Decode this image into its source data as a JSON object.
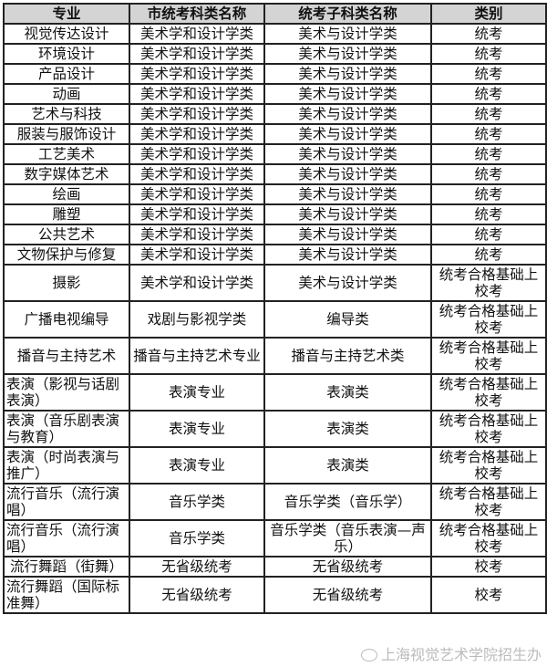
{
  "headers": [
    "专业",
    "市统考科类名称",
    "统考子科类名称",
    "类别"
  ],
  "rows": [
    [
      "视觉传达设计",
      "美术学和设计学类",
      "美术与设计学类",
      "统考"
    ],
    [
      "环境设计",
      "美术学和设计学类",
      "美术与设计学类",
      "统考"
    ],
    [
      "产品设计",
      "美术学和设计学类",
      "美术与设计学类",
      "统考"
    ],
    [
      "动画",
      "美术学和设计学类",
      "美术与设计学类",
      "统考"
    ],
    [
      "艺术与科技",
      "美术学和设计学类",
      "美术与设计学类",
      "统考"
    ],
    [
      "服装与服饰设计",
      "美术学和设计学类",
      "美术与设计学类",
      "统考"
    ],
    [
      "工艺美术",
      "美术学和设计学类",
      "美术与设计学类",
      "统考"
    ],
    [
      "数字媒体艺术",
      "美术学和设计学类",
      "美术与设计学类",
      "统考"
    ],
    [
      "绘画",
      "美术学和设计学类",
      "美术与设计学类",
      "统考"
    ],
    [
      "雕塑",
      "美术学和设计学类",
      "美术与设计学类",
      "统考"
    ],
    [
      "公共艺术",
      "美术学和设计学类",
      "美术与设计学类",
      "统考"
    ],
    [
      "文物保护与修复",
      "美术学和设计学类",
      "美术与设计学类",
      "统考"
    ],
    [
      "摄影",
      "美术学和设计学类",
      "美术与设计学类",
      "统考合格基础上校考"
    ],
    [
      "广播电视编导",
      "戏剧与影视学类",
      "编导类",
      "统考合格基础上校考"
    ],
    [
      "播音与主持艺术",
      "播音与主持艺术专业",
      "播音与主持艺术类",
      "统考合格基础上校考"
    ],
    [
      "表演（影视与话剧表演）",
      "表演专业",
      "表演类",
      "统考合格基础上校考"
    ],
    [
      "表演（音乐剧表演与教育）",
      "表演专业",
      "表演类",
      "统考合格基础上校考"
    ],
    [
      "表演（时尚表演与推广）",
      "表演专业",
      "表演类",
      "统考合格基础上校考"
    ],
    [
      "流行音乐（流行演唱）",
      "音乐学类",
      "音乐学类（音乐学）",
      "统考合格基础上校考"
    ],
    [
      "流行音乐（流行演唱）",
      "音乐学类",
      "音乐学类（音乐表演—声乐）",
      "统考合格基础上校考"
    ],
    [
      "流行舞蹈（街舞）",
      "无省级统考",
      "无省级统考",
      "校考"
    ],
    [
      "流行舞蹈（国际标准舞）",
      "无省级统考",
      "无省级统考",
      "校考"
    ]
  ],
  "watermark": "上海视觉艺术学院招生办"
}
